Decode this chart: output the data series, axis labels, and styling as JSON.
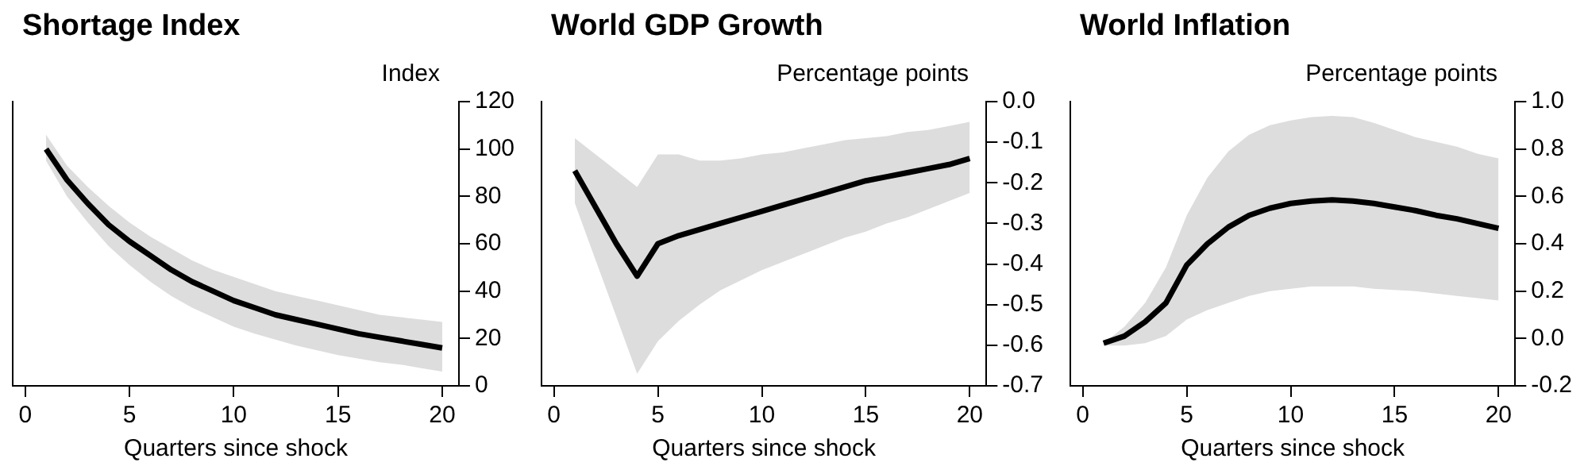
{
  "chart_data": [
    {
      "type": "line",
      "title": "Shortage Index",
      "xlabel": "Quarters since shock",
      "ylabel": "Index",
      "x": [
        1,
        2,
        3,
        4,
        5,
        6,
        7,
        8,
        9,
        10,
        11,
        12,
        13,
        14,
        15,
        16,
        17,
        18,
        19,
        20
      ],
      "xlim": [
        -0.6,
        20.8
      ],
      "xticks": [
        0,
        5,
        10,
        15,
        20
      ],
      "ylim": [
        0,
        120
      ],
      "yticks": [
        0,
        20,
        40,
        60,
        80,
        100,
        120
      ],
      "marker": "none",
      "series": [
        {
          "color": "#000000",
          "values": [
            100,
            87,
            77,
            68,
            61,
            55,
            49,
            44,
            40,
            36,
            33,
            30,
            28,
            26,
            24,
            22,
            20.5,
            19,
            17.5,
            16
          ],
          "lower": [
            95,
            80,
            69,
            59,
            51,
            44,
            38,
            33,
            29,
            25,
            22,
            19.5,
            17,
            15,
            13,
            11.5,
            10,
            9,
            7.5,
            6
          ],
          "upper": [
            106,
            93,
            84,
            76,
            69,
            63,
            58,
            53,
            49,
            46,
            43,
            40,
            38,
            36,
            34,
            32,
            30,
            29,
            28,
            27
          ]
        }
      ]
    },
    {
      "type": "line",
      "title": "World GDP Growth",
      "xlabel": "Quarters since shock",
      "ylabel": "Percentage points",
      "x": [
        1,
        2,
        3,
        4,
        5,
        6,
        7,
        8,
        9,
        10,
        11,
        12,
        13,
        14,
        15,
        16,
        17,
        18,
        19,
        20
      ],
      "xlim": [
        -0.6,
        20.8
      ],
      "xticks": [
        0,
        5,
        10,
        15,
        20
      ],
      "ylim": [
        -0.7,
        0
      ],
      "yticks": [
        {
          "value": -0.7,
          "label": "-0.7"
        },
        {
          "value": -0.6,
          "label": "-0.6"
        },
        {
          "value": -0.5,
          "label": "-0.5"
        },
        {
          "value": -0.4,
          "label": "-0.4"
        },
        {
          "value": -0.3,
          "label": "-0.3"
        },
        {
          "value": -0.2,
          "label": "-0.2"
        },
        {
          "value": -0.1,
          "label": "-0.1"
        },
        {
          "value": 0,
          "label": "0.0"
        }
      ],
      "marker": "none",
      "series": [
        {
          "color": "#000000",
          "values": [
            -0.17,
            -0.26,
            -0.35,
            -0.43,
            -0.35,
            -0.33,
            -0.315,
            -0.3,
            -0.285,
            -0.27,
            -0.255,
            -0.24,
            -0.225,
            -0.21,
            -0.195,
            -0.185,
            -0.175,
            -0.165,
            -0.155,
            -0.14
          ],
          "lower": [
            -0.25,
            -0.39,
            -0.53,
            -0.67,
            -0.59,
            -0.54,
            -0.5,
            -0.465,
            -0.44,
            -0.415,
            -0.395,
            -0.375,
            -0.355,
            -0.335,
            -0.32,
            -0.3,
            -0.285,
            -0.265,
            -0.245,
            -0.225
          ],
          "upper": [
            -0.09,
            -0.13,
            -0.17,
            -0.21,
            -0.13,
            -0.13,
            -0.145,
            -0.145,
            -0.14,
            -0.13,
            -0.125,
            -0.115,
            -0.105,
            -0.095,
            -0.09,
            -0.085,
            -0.075,
            -0.07,
            -0.06,
            -0.05
          ]
        }
      ]
    },
    {
      "type": "line",
      "title": "World Inflation",
      "xlabel": "Quarters since shock",
      "ylabel": "Percentage points",
      "x": [
        1,
        2,
        3,
        4,
        5,
        6,
        7,
        8,
        9,
        10,
        11,
        12,
        13,
        14,
        15,
        16,
        17,
        18,
        19,
        20
      ],
      "xlim": [
        -0.6,
        20.8
      ],
      "xticks": [
        0,
        5,
        10,
        15,
        20
      ],
      "ylim": [
        -0.2,
        1
      ],
      "yticks": [
        {
          "value": -0.2,
          "label": "-0.2"
        },
        {
          "value": 0,
          "label": "0.0"
        },
        {
          "value": 0.2,
          "label": "0.2"
        },
        {
          "value": 0.4,
          "label": "0.4"
        },
        {
          "value": 0.6,
          "label": "0.6"
        },
        {
          "value": 0.8,
          "label": "0.8"
        },
        {
          "value": 1,
          "label": "1.0"
        }
      ],
      "marker": "none",
      "series": [
        {
          "color": "#000000",
          "values": [
            -0.02,
            0.01,
            0.07,
            0.15,
            0.31,
            0.4,
            0.47,
            0.52,
            0.55,
            0.57,
            0.58,
            0.585,
            0.58,
            0.57,
            0.555,
            0.54,
            0.52,
            0.505,
            0.485,
            0.465
          ],
          "lower": [
            -0.03,
            -0.03,
            -0.02,
            0.01,
            0.08,
            0.12,
            0.15,
            0.18,
            0.2,
            0.21,
            0.22,
            0.22,
            0.22,
            0.21,
            0.205,
            0.2,
            0.19,
            0.18,
            0.17,
            0.16
          ],
          "upper": [
            -0.02,
            0.05,
            0.15,
            0.3,
            0.52,
            0.68,
            0.79,
            0.86,
            0.9,
            0.92,
            0.935,
            0.94,
            0.935,
            0.91,
            0.88,
            0.85,
            0.83,
            0.81,
            0.78,
            0.76
          ]
        }
      ]
    }
  ]
}
